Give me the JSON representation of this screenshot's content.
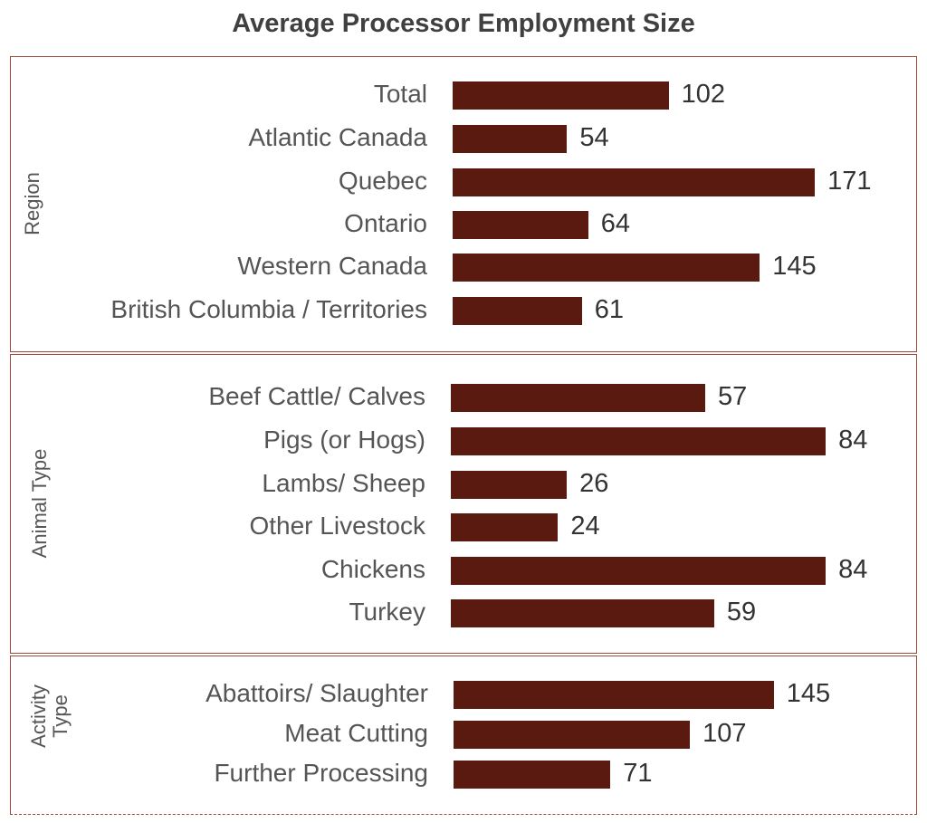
{
  "chart_data": {
    "type": "bar",
    "orientation": "horizontal",
    "title": "Average Processor Employment Size",
    "colors": {
      "bar": "#5a1a10",
      "border": "#a0483c"
    },
    "groups": [
      {
        "name": "Region",
        "categories": [
          "Total",
          "Atlantic Canada",
          "Quebec",
          "Ontario",
          "Western Canada",
          "British Columbia / Territories"
        ],
        "values": [
          102,
          54,
          171,
          64,
          145,
          61
        ]
      },
      {
        "name": "Animal Type",
        "categories": [
          "Beef Cattle/ Calves",
          "Pigs (or Hogs)",
          "Lambs/ Sheep",
          "Other Livestock",
          "Chickens",
          "Turkey"
        ],
        "values": [
          57,
          84,
          26,
          24,
          84,
          59
        ]
      },
      {
        "name": "Activity Type",
        "categories": [
          "Abattoirs/ Slaughter",
          "Meat Cutting",
          "Further Processing"
        ],
        "values": [
          145,
          107,
          71
        ]
      }
    ]
  }
}
